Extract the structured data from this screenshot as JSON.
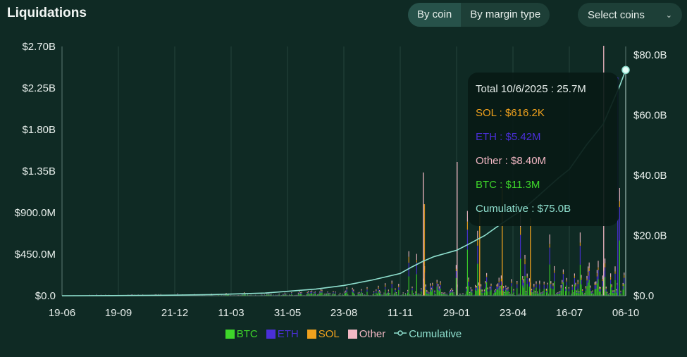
{
  "header": {
    "title": "Liquidations",
    "tabs": [
      {
        "label": "By coin",
        "active": true
      },
      {
        "label": "By margin type",
        "active": false
      }
    ],
    "select_label": "Select coins",
    "select_icon": "chevron-down-icon"
  },
  "colors": {
    "btc": "#3ed62a",
    "eth": "#4a2fd8",
    "sol": "#f0a11d",
    "other": "#f2b8c4",
    "cumulative": "#8fe0cf",
    "background": "#0f2a24"
  },
  "chart_data": {
    "type": "bar",
    "title": "Liquidations",
    "x_ticks": [
      "19-06",
      "19-09",
      "21-12",
      "11-03",
      "31-05",
      "23-08",
      "11-11",
      "29-01",
      "23-04",
      "16-07",
      "06-10"
    ],
    "y_left_ticks": [
      "$0.0",
      "$450.0M",
      "$900.0M",
      "$1.35B",
      "$1.80B",
      "$2.25B",
      "$2.70B"
    ],
    "y_left_range": [
      0,
      2700000000
    ],
    "y_right_ticks": [
      "$0.0",
      "$20.0B",
      "$40.0B",
      "$60.0B",
      "$80.0B"
    ],
    "y_right_range": [
      0,
      80000000000
    ],
    "series": [
      {
        "name": "BTC",
        "type": "stacked-bar"
      },
      {
        "name": "ETH",
        "type": "stacked-bar"
      },
      {
        "name": "SOL",
        "type": "stacked-bar"
      },
      {
        "name": "Other",
        "type": "stacked-bar"
      },
      {
        "name": "Cumulative",
        "type": "line",
        "axis": "right",
        "x_fraction": [
          0,
          0.09,
          0.18,
          0.27,
          0.36,
          0.45,
          0.5,
          0.55,
          0.6,
          0.62,
          0.64,
          0.66,
          0.7,
          0.72,
          0.75,
          0.78,
          0.8,
          0.82,
          0.85,
          0.88,
          0.9,
          0.93,
          0.96,
          0.99,
          1.0
        ],
        "values": [
          0,
          0.05,
          0.15,
          0.4,
          0.9,
          2.2,
          3.4,
          5.2,
          7.4,
          9.5,
          11.4,
          13.0,
          15.1,
          17.0,
          20.0,
          24.0,
          26.5,
          29.0,
          34.0,
          39.0,
          42.0,
          50.0,
          57.0,
          70.0,
          75.0
        ]
      }
    ],
    "legend_placement": "bottom-center",
    "grid": "vertical",
    "tooltip": {
      "date": "10/6/2025",
      "lines": [
        {
          "label": "Total 10/6/2025 : 25.7M",
          "color": "#e8efec"
        },
        {
          "label": "SOL : $616.2K",
          "color": "#f0a11d"
        },
        {
          "label": "ETH : $5.42M",
          "color": "#4a2fd8"
        },
        {
          "label": "Other : $8.40M",
          "color": "#f2b8c4"
        },
        {
          "label": "BTC : $11.3M",
          "color": "#3ed62a"
        },
        {
          "label": "Cumulative : $75.0B",
          "color": "#8fe0cf"
        }
      ]
    }
  },
  "legend": [
    {
      "name": "BTC",
      "color": "#3ed62a"
    },
    {
      "name": "ETH",
      "color": "#4a2fd8"
    },
    {
      "name": "SOL",
      "color": "#f0a11d"
    },
    {
      "name": "Other",
      "color": "#f2b8c4"
    },
    {
      "name": "Cumulative",
      "color": "#8fe0cf"
    }
  ]
}
